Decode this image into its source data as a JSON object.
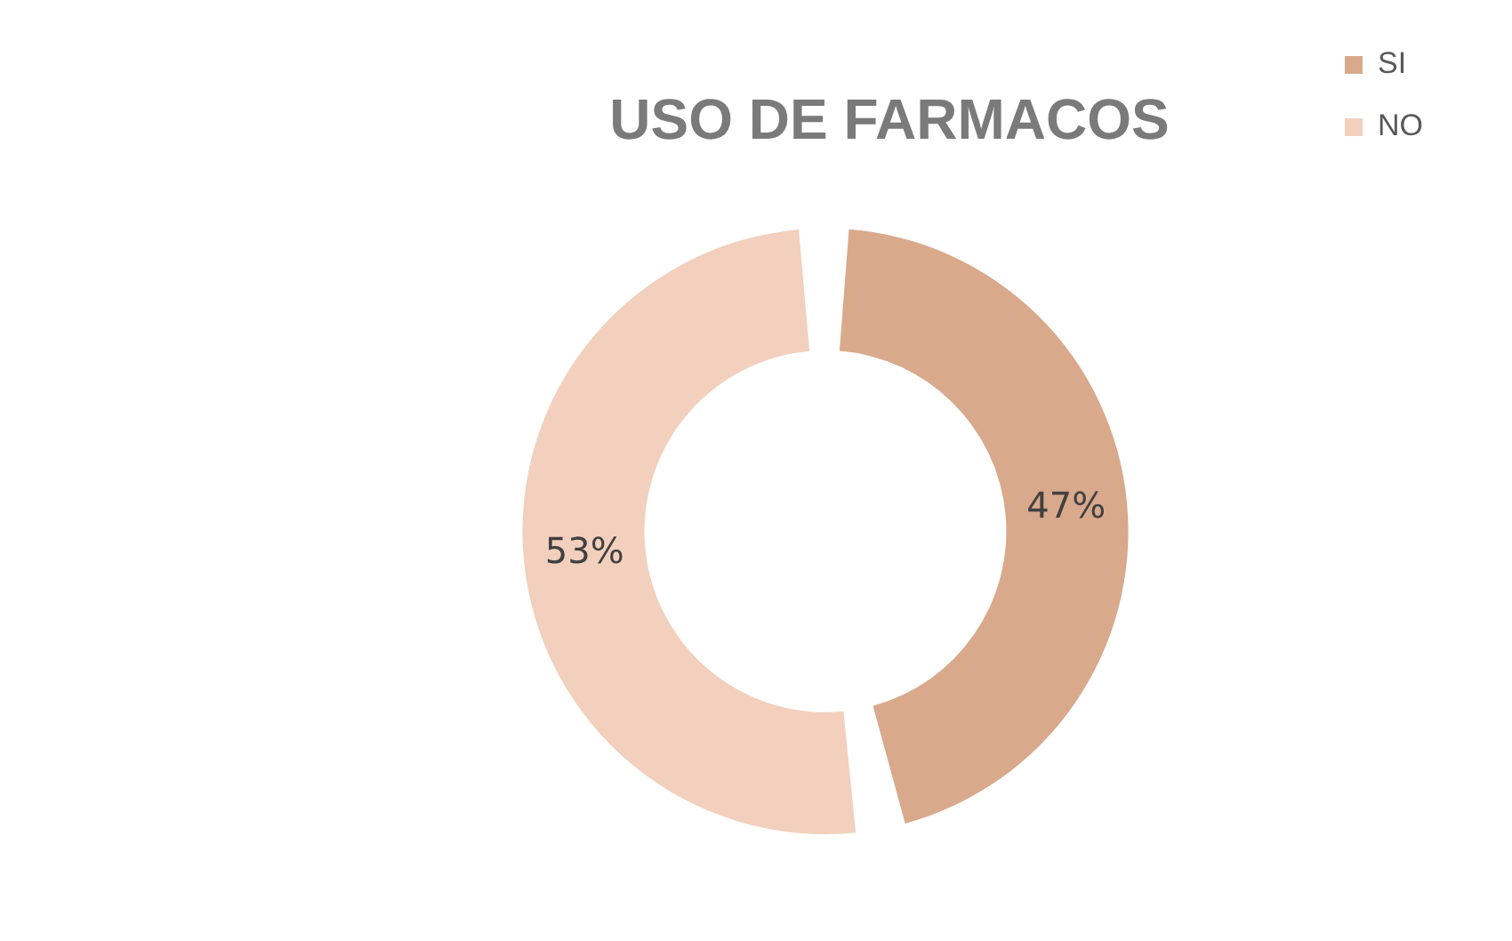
{
  "chart_data": {
    "type": "donut",
    "title": "USO DE FARMACOS",
    "categories": [
      "SI",
      "NO"
    ],
    "values": [
      47,
      53
    ],
    "colors": [
      "#d9a98c",
      "#f2d0bd"
    ],
    "value_labels": [
      "47%",
      "53%"
    ],
    "legend": "right"
  }
}
